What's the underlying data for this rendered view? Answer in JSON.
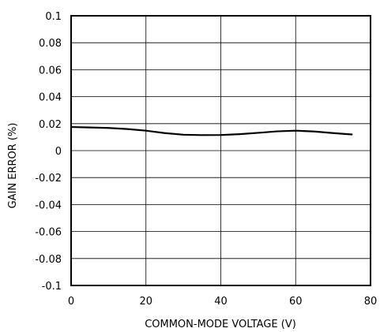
{
  "chart_data": {
    "type": "line",
    "xlabel": "COMMON-MODE VOLTAGE (V)",
    "ylabel": "GAIN ERROR (%)",
    "xlim": [
      0,
      80
    ],
    "ylim": [
      -0.1,
      0.1
    ],
    "grid": true,
    "x_ticks": [
      0,
      20,
      40,
      60,
      80
    ],
    "x_tick_labels": [
      "0",
      "20",
      "40",
      "60",
      "80"
    ],
    "y_ticks": [
      0.1,
      0.08,
      0.06,
      0.04,
      0.02,
      0,
      -0.02,
      -0.04,
      -0.06,
      -0.08,
      -0.1
    ],
    "y_tick_labels": [
      "0.1",
      "0.08",
      "0.06",
      "0.04",
      "0.02",
      "0",
      "-0.02",
      "-0.04",
      "-0.06",
      "-0.08",
      "-0.1"
    ],
    "series": [
      {
        "color": "#000000",
        "x": [
          0,
          5,
          10,
          15,
          20,
          25,
          30,
          35,
          40,
          45,
          50,
          55,
          60,
          65,
          70,
          75
        ],
        "y": [
          0.0175,
          0.0172,
          0.0168,
          0.016,
          0.0148,
          0.013,
          0.0118,
          0.0115,
          0.0116,
          0.0122,
          0.0132,
          0.0143,
          0.0148,
          0.0142,
          0.013,
          0.012
        ]
      }
    ]
  }
}
